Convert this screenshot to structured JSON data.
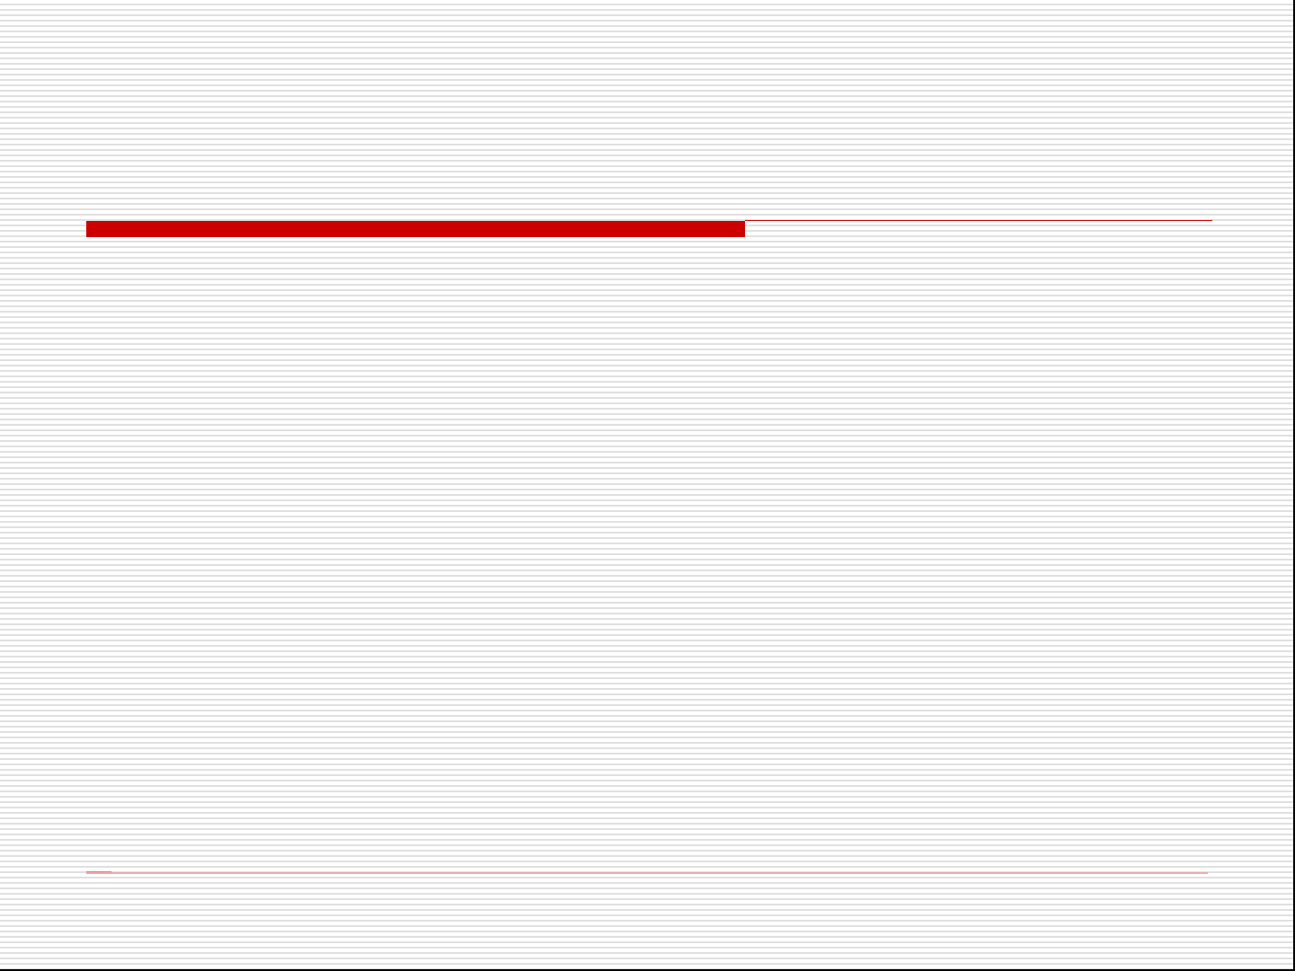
{
  "slide": {
    "accent_color": "#cc0000",
    "footer_line_color": "#f0a8a8",
    "background": "horizontal-stripes"
  }
}
